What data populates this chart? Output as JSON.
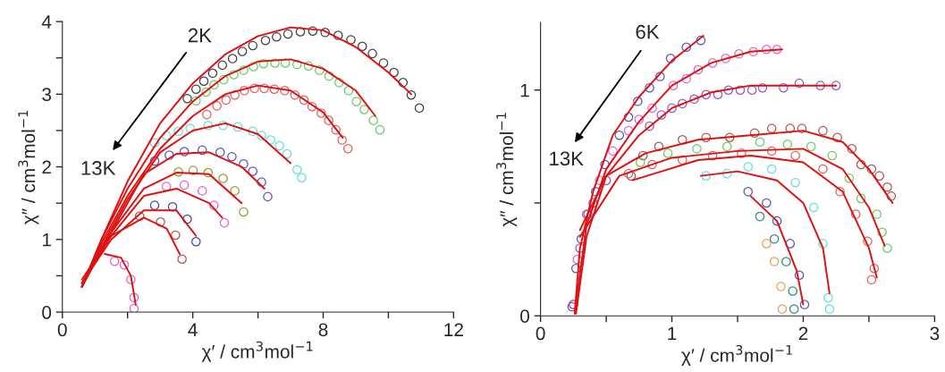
{
  "chart_data": [
    {
      "type": "scatter",
      "xlabel": "χ′ / cm$^{3}$mol$^{−1}$",
      "ylabel": "χ″ / cm$^{3}$mol$^{−1}$",
      "annotations": [
        "2K",
        "13K"
      ],
      "marker": "circle",
      "grid": false,
      "legend": false,
      "xlim": [
        0,
        12
      ],
      "ylim": [
        0,
        4
      ],
      "xticks": [
        0,
        {
          "value": 2,
          "label": null
        },
        4,
        {
          "value": 6,
          "label": null
        },
        8,
        {
          "value": 10,
          "label": null
        },
        12
      ],
      "yticks": [
        0,
        {
          "value": 0.5,
          "label": null
        },
        1,
        {
          "value": 1.5,
          "label": null
        },
        2,
        {
          "value": 2.5,
          "label": null
        },
        3,
        {
          "value": 3.5,
          "label": null
        },
        4
      ],
      "series": [
        {
          "color": "#404040",
          "x": [
            3.83,
            4.1,
            4.34,
            4.61,
            4.91,
            5.22,
            5.52,
            5.84,
            6.23,
            6.57,
            6.92,
            7.3,
            7.68,
            8.06,
            8.46,
            8.85,
            9.2,
            9.51,
            9.85,
            10.17,
            10.45,
            10.7,
            10.95
          ],
          "values": [
            2.94,
            3.07,
            3.18,
            3.29,
            3.4,
            3.49,
            3.59,
            3.67,
            3.74,
            3.79,
            3.83,
            3.86,
            3.87,
            3.85,
            3.81,
            3.75,
            3.66,
            3.56,
            3.43,
            3.3,
            3.16,
            2.99,
            2.81
          ]
        },
        {
          "color": "#66cc66",
          "x": [
            4.1,
            4.41,
            4.65,
            4.95,
            5.26,
            5.56,
            5.86,
            6.17,
            6.52,
            6.84,
            7.2,
            7.55,
            7.89,
            8.18,
            8.49,
            8.78,
            9.02,
            9.26,
            9.54,
            9.74
          ],
          "values": [
            2.91,
            3.03,
            3.13,
            3.2,
            3.27,
            3.33,
            3.38,
            3.42,
            3.43,
            3.43,
            3.41,
            3.39,
            3.33,
            3.25,
            3.16,
            3.05,
            2.9,
            2.79,
            2.64,
            2.51
          ]
        },
        {
          "color": "#e06060",
          "x": [
            4.43,
            4.74,
            5.02,
            5.29,
            5.58,
            5.89,
            6.19,
            6.5,
            6.82,
            7.13,
            7.41,
            7.66,
            7.94,
            8.17,
            8.39,
            8.58,
            8.76
          ],
          "values": [
            2.72,
            2.84,
            2.92,
            2.99,
            3.05,
            3.08,
            3.08,
            3.07,
            3.05,
            2.99,
            2.92,
            2.83,
            2.74,
            2.64,
            2.51,
            2.37,
            2.25
          ]
        },
        {
          "color": "#66dddd",
          "x": [
            2.83,
            3.19,
            3.56,
            3.92,
            4.47,
            4.93,
            5.38,
            5.84,
            6.11,
            6.39,
            6.66,
            6.89,
            7.2,
            7.34
          ],
          "values": [
            2.33,
            2.43,
            2.49,
            2.53,
            2.57,
            2.57,
            2.55,
            2.49,
            2.43,
            2.37,
            2.29,
            2.18,
            1.96,
            1.85
          ]
        },
        {
          "color": "#5555bb",
          "x": [
            2.83,
            3.28,
            3.74,
            4.29,
            4.84,
            5.2,
            5.56,
            5.84,
            6.11,
            6.3
          ],
          "values": [
            2.08,
            2.16,
            2.21,
            2.23,
            2.2,
            2.14,
            2.04,
            1.94,
            1.79,
            1.59
          ]
        },
        {
          "color": "#999933",
          "x": [
            3.56,
            4.01,
            4.47,
            4.93,
            5.29,
            5.56
          ],
          "values": [
            1.93,
            1.95,
            1.92,
            1.84,
            1.67,
            1.38
          ]
        },
        {
          "color": "#e066cc",
          "x": [
            3.19,
            3.74,
            4.29,
            4.65,
            4.97
          ],
          "values": [
            1.73,
            1.75,
            1.67,
            1.47,
            1.23
          ]
        },
        {
          "color": "#4444aa",
          "x": [
            2.83,
            3.38,
            3.83,
            4.1
          ],
          "values": [
            1.47,
            1.45,
            1.28,
            0.97
          ]
        },
        {
          "color": "#aa5555",
          "x": [
            2.37,
            3.01,
            3.47,
            3.67
          ],
          "values": [
            1.32,
            1.24,
            1.06,
            0.73
          ]
        },
        {
          "color": "#e066cc",
          "x": [
            1.6,
            1.9,
            2.1,
            2.2,
            2.2
          ],
          "values": [
            0.7,
            0.65,
            0.45,
            0.2,
            0.05
          ]
        },
        {
          "type": "line",
          "marker": "none",
          "color": "#e01010",
          "x": [
            0.6,
            1.2,
            2.0,
            3.0,
            4.0,
            5.0,
            6.0,
            7.0,
            8.0,
            9.0,
            10.0,
            10.7
          ],
          "values": [
            0.35,
            1.0,
            1.8,
            2.6,
            3.15,
            3.55,
            3.8,
            3.92,
            3.88,
            3.65,
            3.3,
            3.0
          ]
        },
        {
          "type": "line",
          "marker": "none",
          "color": "#e01010",
          "x": [
            0.6,
            1.2,
            2.0,
            3.0,
            4.0,
            5.0,
            6.0,
            7.0,
            8.0,
            9.0,
            9.6
          ],
          "values": [
            0.35,
            1.0,
            1.7,
            2.4,
            2.9,
            3.25,
            3.45,
            3.48,
            3.35,
            3.05,
            2.7
          ]
        },
        {
          "type": "line",
          "marker": "none",
          "color": "#e01010",
          "x": [
            0.6,
            1.2,
            2.0,
            3.0,
            4.0,
            5.0,
            6.0,
            7.0,
            8.0,
            8.6
          ],
          "values": [
            0.35,
            0.95,
            1.6,
            2.25,
            2.7,
            3.0,
            3.12,
            3.05,
            2.75,
            2.4
          ]
        },
        {
          "type": "line",
          "marker": "none",
          "color": "#e01010",
          "x": [
            0.6,
            1.2,
            2.0,
            3.0,
            4.0,
            5.0,
            6.0,
            7.0
          ],
          "values": [
            0.35,
            0.9,
            1.55,
            2.2,
            2.5,
            2.6,
            2.45,
            2.05
          ]
        },
        {
          "type": "line",
          "marker": "none",
          "color": "#e01010",
          "x": [
            0.6,
            1.5,
            2.5,
            3.5,
            4.5,
            5.5,
            6.2
          ],
          "values": [
            0.35,
            1.1,
            1.9,
            2.18,
            2.2,
            2.0,
            1.7
          ]
        },
        {
          "type": "line",
          "marker": "none",
          "color": "#e01010",
          "x": [
            0.6,
            1.5,
            2.5,
            3.5,
            4.5,
            5.5
          ],
          "values": [
            0.35,
            1.1,
            1.7,
            1.92,
            1.9,
            1.5
          ]
        },
        {
          "type": "line",
          "marker": "none",
          "color": "#e01010",
          "x": [
            0.6,
            1.5,
            2.5,
            3.5,
            4.5,
            4.9
          ],
          "values": [
            0.4,
            1.05,
            1.6,
            1.7,
            1.5,
            1.3
          ]
        },
        {
          "type": "line",
          "marker": "none",
          "color": "#e01010",
          "x": [
            0.6,
            1.5,
            2.5,
            3.5,
            4.1
          ],
          "values": [
            0.4,
            1.0,
            1.4,
            1.4,
            1.05
          ]
        },
        {
          "type": "line",
          "marker": "none",
          "color": "#e01010",
          "x": [
            0.6,
            1.5,
            2.5,
            3.2,
            3.6
          ],
          "values": [
            0.45,
            1.05,
            1.3,
            1.15,
            0.8
          ]
        },
        {
          "type": "line",
          "marker": "none",
          "color": "#e01010",
          "x": [
            1.3,
            1.8,
            2.1,
            2.25
          ],
          "values": [
            0.8,
            0.75,
            0.5,
            0.1
          ]
        }
      ]
    },
    {
      "type": "scatter",
      "xlabel": "χ′ / cm$^{3}$mol$^{−1}$",
      "ylabel": "χ″ / cm$^{3}$mol$^{−1}$",
      "annotations": [
        "6K",
        "13K"
      ],
      "marker": "circle",
      "grid": false,
      "legend": false,
      "xlim": [
        0,
        3
      ],
      "ylim": [
        0,
        1.3
      ],
      "xticks": [
        0,
        {
          "value": 0.5,
          "label": null
        },
        1,
        {
          "value": 1.5,
          "label": null
        },
        2,
        {
          "value": 2.5,
          "label": null
        },
        3
      ],
      "yticks": [
        0,
        {
          "value": 0.5,
          "label": null
        },
        1
      ],
      "series": [
        {
          "color": "#5555bb",
          "x": [
            0.24,
            0.27,
            0.31,
            0.36,
            0.42,
            0.49,
            0.6,
            0.67,
            0.74,
            0.83,
            0.91,
            0.99,
            1.11,
            1.22
          ],
          "values": [
            0.04,
            0.21,
            0.34,
            0.45,
            0.55,
            0.67,
            0.8,
            0.88,
            0.95,
            1.01,
            1.06,
            1.14,
            1.19,
            1.22
          ]
        },
        {
          "color": "#e066cc",
          "x": [
            0.25,
            0.28,
            0.35,
            0.45,
            0.55,
            0.67,
            0.75,
            0.85,
            1.01,
            1.11,
            1.2,
            1.31,
            1.41,
            1.51,
            1.62,
            1.72,
            1.8
          ],
          "values": [
            0.05,
            0.25,
            0.45,
            0.6,
            0.73,
            0.82,
            0.87,
            0.92,
            1.02,
            1.05,
            1.09,
            1.12,
            1.14,
            1.16,
            1.17,
            1.18,
            1.18
          ]
        },
        {
          "color": "#9955bb",
          "x": [
            0.25,
            0.3,
            0.4,
            0.5,
            0.83,
            0.92,
            1.0,
            1.08,
            1.17,
            1.26,
            1.35,
            1.43,
            1.52,
            1.61,
            1.69,
            1.85,
            1.97,
            2.13,
            2.25
          ],
          "values": [
            0.05,
            0.3,
            0.5,
            0.6,
            0.84,
            0.89,
            0.92,
            0.94,
            0.96,
            0.98,
            0.98,
            1.0,
            1.0,
            1.0,
            1.01,
            1.01,
            1.03,
            1.02,
            1.02
          ]
        },
        {
          "color": "#aa5555",
          "x": [
            0.69,
            0.78,
            0.9,
            1.08,
            1.26,
            1.44,
            1.63,
            1.76,
            1.9,
            1.99,
            2.15,
            2.26,
            2.37,
            2.44,
            2.52,
            2.58,
            2.64,
            2.67
          ],
          "values": [
            0.62,
            0.71,
            0.75,
            0.78,
            0.79,
            0.79,
            0.81,
            0.83,
            0.83,
            0.83,
            0.82,
            0.79,
            0.74,
            0.67,
            0.65,
            0.62,
            0.57,
            0.53
          ]
        },
        {
          "color": "#66cc66",
          "x": [
            0.76,
            0.97,
            1.19,
            1.42,
            1.67,
            1.88,
            2.06,
            2.22,
            2.35,
            2.44,
            2.56,
            2.6,
            2.64
          ],
          "values": [
            0.68,
            0.72,
            0.74,
            0.75,
            0.77,
            0.76,
            0.75,
            0.71,
            0.61,
            0.52,
            0.45,
            0.37,
            0.3
          ]
        },
        {
          "color": "#e06060",
          "x": [
            0.67,
            0.85,
            1.08,
            1.31,
            1.53,
            1.76,
            1.94,
            2.15,
            2.28,
            2.4,
            2.49,
            2.54,
            2.52
          ],
          "values": [
            0.63,
            0.67,
            0.69,
            0.71,
            0.72,
            0.73,
            0.71,
            0.65,
            0.55,
            0.45,
            0.33,
            0.21,
            0.16
          ]
        },
        {
          "color": "#66dddd",
          "x": [
            1.26,
            1.42,
            1.58,
            1.76,
            1.94,
            2.08,
            2.15,
            2.19,
            2.2
          ],
          "values": [
            0.62,
            0.63,
            0.66,
            0.65,
            0.59,
            0.48,
            0.32,
            0.08,
            0.03
          ]
        },
        {
          "color": "#5555bb",
          "x": [
            1.58,
            1.72,
            1.8,
            1.9,
            1.97,
            2.01
          ],
          "values": [
            0.55,
            0.5,
            0.42,
            0.32,
            0.18,
            0.05
          ]
        },
        {
          "color": "#338877",
          "x": [
            1.67,
            1.78,
            1.87,
            1.92,
            1.93
          ],
          "values": [
            0.44,
            0.34,
            0.24,
            0.11,
            0.03
          ]
        },
        {
          "color": "#ee9955",
          "x": [
            1.72,
            1.78,
            1.83,
            1.84
          ],
          "values": [
            0.32,
            0.24,
            0.13,
            0.03
          ]
        },
        {
          "type": "line",
          "marker": "none",
          "color": "#e01010",
          "x": [
            0.26,
            0.3,
            0.4,
            0.55,
            0.75,
            1.0,
            1.24
          ],
          "values": [
            0.01,
            0.3,
            0.55,
            0.8,
            0.97,
            1.13,
            1.24
          ]
        },
        {
          "type": "line",
          "marker": "none",
          "color": "#e01010",
          "x": [
            0.26,
            0.35,
            0.5,
            0.75,
            1.0,
            1.3,
            1.6,
            1.84
          ],
          "values": [
            0.01,
            0.4,
            0.65,
            0.86,
            1.02,
            1.12,
            1.17,
            1.18
          ]
        },
        {
          "type": "line",
          "marker": "none",
          "color": "#e01010",
          "x": [
            0.27,
            0.35,
            0.5,
            0.75,
            1.0,
            1.3,
            1.6,
            2.0,
            2.25
          ],
          "values": [
            0.01,
            0.35,
            0.62,
            0.8,
            0.92,
            0.99,
            1.02,
            1.02,
            1.02
          ]
        },
        {
          "type": "line",
          "marker": "none",
          "color": "#e01010",
          "x": [
            0.3,
            0.5,
            0.8,
            1.2,
            1.6,
            2.0,
            2.3,
            2.5,
            2.68
          ],
          "values": [
            0.38,
            0.62,
            0.72,
            0.78,
            0.8,
            0.82,
            0.77,
            0.65,
            0.5
          ]
        },
        {
          "type": "line",
          "marker": "none",
          "color": "#e01010",
          "x": [
            0.3,
            0.6,
            1.0,
            1.5,
            2.0,
            2.3,
            2.5,
            2.62
          ],
          "values": [
            0.35,
            0.62,
            0.7,
            0.73,
            0.74,
            0.65,
            0.48,
            0.31
          ]
        },
        {
          "type": "line",
          "marker": "none",
          "color": "#e01010",
          "x": [
            0.7,
            1.2,
            1.6,
            2.0,
            2.3,
            2.5,
            2.56
          ],
          "values": [
            0.6,
            0.69,
            0.71,
            0.68,
            0.55,
            0.3,
            0.17
          ]
        },
        {
          "type": "line",
          "marker": "none",
          "color": "#e01010",
          "x": [
            1.22,
            1.5,
            1.8,
            2.0,
            2.15,
            2.2
          ],
          "values": [
            0.62,
            0.64,
            0.6,
            0.5,
            0.3,
            0.1
          ]
        },
        {
          "type": "line",
          "marker": "none",
          "color": "#e01010",
          "x": [
            1.6,
            1.8,
            1.95,
            2.0
          ],
          "values": [
            0.53,
            0.42,
            0.2,
            0.05
          ]
        }
      ]
    }
  ]
}
